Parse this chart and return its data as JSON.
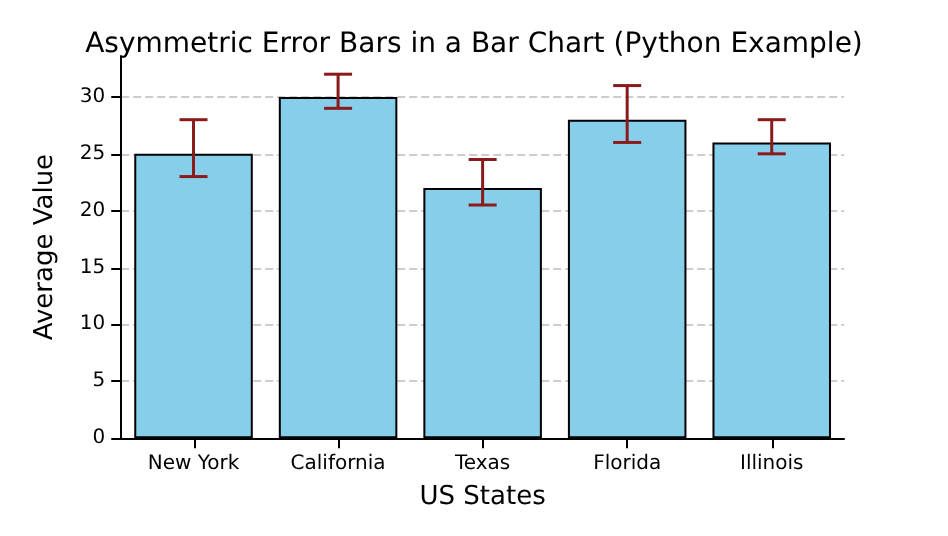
{
  "chart_data": {
    "type": "bar",
    "title": "Asymmetric Error Bars in a Bar Chart (Python Example)",
    "xlabel": "US States",
    "ylabel": "Average Value",
    "categories": [
      "New York",
      "California",
      "Texas",
      "Florida",
      "Illinois"
    ],
    "values": [
      25,
      30,
      22,
      28,
      26
    ],
    "color": "#87ceeb",
    "errors": [
      [
        23,
        28
      ],
      [
        29,
        32
      ],
      [
        20.5,
        24.5
      ],
      [
        26,
        31
      ],
      [
        25,
        28
      ]
    ],
    "ylim": [
      0,
      33.6
    ],
    "yticks": [
      0,
      5,
      10,
      15,
      20,
      25,
      30
    ],
    "grid": "y"
  }
}
